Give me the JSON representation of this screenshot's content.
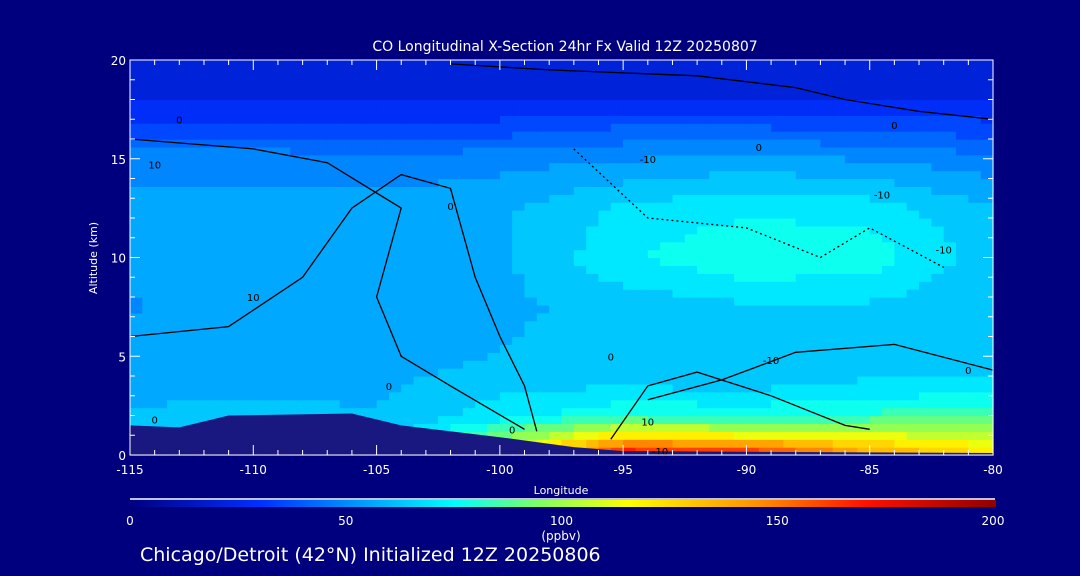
{
  "chart_data": {
    "type": "heatmap",
    "title": "CO Longitudinal X-Section 24hr  Fx Valid 12Z 20250807",
    "xlabel": "Longitude",
    "ylabel": "Altitude (km)",
    "xlim": [
      -115,
      -80
    ],
    "ylim": [
      0,
      20
    ],
    "x_ticks": [
      "-115",
      "-110",
      "-105",
      "-100",
      "-95",
      "-90",
      "-85",
      "-80"
    ],
    "x_tick_values": [
      -115,
      -110,
      -105,
      -100,
      -95,
      -90,
      -85,
      -80
    ],
    "y_ticks": [
      "0",
      "5",
      "10",
      "15",
      "20"
    ],
    "y_tick_values": [
      0,
      5,
      10,
      15,
      20
    ],
    "grid_lon": [
      -115,
      -110,
      -105,
      -100,
      -95,
      -90,
      -85,
      -80
    ],
    "grid_alt": [
      0.3,
      1,
      2,
      3.5,
      5,
      7.5,
      10,
      12.5,
      15,
      16.5,
      18,
      20
    ],
    "values_ppbv": [
      [
        60,
        60,
        60,
        100,
        165,
        160,
        135,
        120
      ],
      [
        60,
        60,
        60,
        90,
        120,
        115,
        110,
        105
      ],
      [
        60,
        62,
        60,
        70,
        80,
        78,
        82,
        85
      ],
      [
        58,
        58,
        58,
        65,
        66,
        65,
        68,
        70
      ],
      [
        55,
        55,
        55,
        60,
        62,
        60,
        62,
        62
      ],
      [
        52,
        55,
        55,
        58,
        62,
        65,
        65,
        60
      ],
      [
        55,
        55,
        55,
        58,
        72,
        80,
        78,
        62
      ],
      [
        55,
        55,
        55,
        58,
        68,
        72,
        70,
        60
      ],
      [
        50,
        50,
        48,
        50,
        52,
        55,
        52,
        48
      ],
      [
        35,
        35,
        35,
        35,
        40,
        40,
        38,
        35
      ],
      [
        24,
        24,
        24,
        24,
        24,
        24,
        24,
        24
      ],
      [
        22,
        22,
        22,
        22,
        22,
        22,
        22,
        22
      ]
    ],
    "terrain_km": [
      [
        -115,
        1.5
      ],
      [
        -113,
        1.4
      ],
      [
        -111,
        2.0
      ],
      [
        -106,
        2.1
      ],
      [
        -104,
        1.5
      ],
      [
        -100,
        0.9
      ],
      [
        -97,
        0.4
      ],
      [
        -95,
        0.2
      ],
      [
        -80,
        0.1
      ]
    ],
    "contours": [
      {
        "label": "0",
        "points": [
          [
            -102,
            19.8
          ],
          [
            -98,
            19.5
          ],
          [
            -92,
            19.2
          ],
          [
            -88,
            18.6
          ],
          [
            -86,
            18.0
          ],
          [
            -83,
            17.4
          ],
          [
            -80,
            17.0
          ]
        ]
      },
      {
        "label": "-10",
        "points": [
          [
            -97,
            15.5
          ],
          [
            -94,
            12.0
          ],
          [
            -90,
            11.5
          ],
          [
            -87,
            10.0
          ],
          [
            -85,
            11.5
          ],
          [
            -82,
            9.5
          ]
        ],
        "dashed": true
      },
      {
        "label": "0",
        "points": [
          [
            -115,
            16.0
          ],
          [
            -110,
            15.5
          ],
          [
            -107,
            14.8
          ],
          [
            -104,
            12.5
          ],
          [
            -105,
            8.0
          ],
          [
            -104,
            5.0
          ],
          [
            -102,
            3.5
          ],
          [
            -99,
            1.3
          ]
        ]
      },
      {
        "label": "10",
        "points": [
          [
            -115,
            6.0
          ],
          [
            -111,
            6.5
          ],
          [
            -108,
            9.0
          ],
          [
            -106,
            12.5
          ],
          [
            -104,
            14.2
          ],
          [
            -102,
            13.5
          ],
          [
            -101,
            9.0
          ],
          [
            -100,
            6.0
          ],
          [
            -99,
            3.5
          ],
          [
            -98.5,
            1.2
          ]
        ]
      },
      {
        "label": "10",
        "points": [
          [
            -95.5,
            0.8
          ],
          [
            -94,
            3.5
          ],
          [
            -92,
            4.2
          ],
          [
            -89,
            3.0
          ],
          [
            -86,
            1.5
          ],
          [
            -85,
            1.3
          ]
        ]
      },
      {
        "label": "0",
        "points": [
          [
            -94,
            2.8
          ],
          [
            -91,
            3.8
          ],
          [
            -88,
            5.2
          ],
          [
            -84,
            5.6
          ],
          [
            -80,
            4.3
          ]
        ]
      }
    ],
    "contour_labels": [
      {
        "text": "0",
        "lon": -113,
        "alt": 17.0
      },
      {
        "text": "-10",
        "lon": -94,
        "alt": 15.0
      },
      {
        "text": "0",
        "lon": -89.5,
        "alt": 15.6
      },
      {
        "text": "0",
        "lon": -84,
        "alt": 16.7
      },
      {
        "text": "-10",
        "lon": -84.5,
        "alt": 13.2
      },
      {
        "text": "-10",
        "lon": -82,
        "alt": 10.4
      },
      {
        "text": "10",
        "lon": -114,
        "alt": 14.7
      },
      {
        "text": "0",
        "lon": -102,
        "alt": 12.6
      },
      {
        "text": "10",
        "lon": -110,
        "alt": 8.0
      },
      {
        "text": "0",
        "lon": -104.5,
        "alt": 3.5
      },
      {
        "text": "0",
        "lon": -95.5,
        "alt": 5.0
      },
      {
        "text": "-10",
        "lon": -89,
        "alt": 4.8
      },
      {
        "text": "0",
        "lon": -81,
        "alt": 4.3
      },
      {
        "text": "10",
        "lon": -94,
        "alt": 1.7
      },
      {
        "text": "0",
        "lon": -114,
        "alt": 1.8
      },
      {
        "text": "0",
        "lon": -99.5,
        "alt": 1.3
      },
      {
        "text": "-10",
        "lon": -93.5,
        "alt": 0.2
      }
    ],
    "colorbar": {
      "min": 0,
      "max": 200,
      "ticks": [
        "0",
        "50",
        "100",
        "150",
        "200"
      ],
      "tick_values": [
        0,
        50,
        100,
        150,
        200
      ],
      "units": "(ppbv)",
      "stops": [
        {
          "v": 0,
          "c": "#000080"
        },
        {
          "v": 30,
          "c": "#0030ff"
        },
        {
          "v": 75,
          "c": "#00ffff"
        },
        {
          "v": 95,
          "c": "#80ff60"
        },
        {
          "v": 115,
          "c": "#ffff00"
        },
        {
          "v": 145,
          "c": "#ff9000"
        },
        {
          "v": 170,
          "c": "#ff1000"
        },
        {
          "v": 200,
          "c": "#900000"
        }
      ]
    },
    "footer": "Chicago/Detroit (42°N) Initialized 12Z 20250806",
    "terrain_color": "#181880",
    "background_color": "#00007f"
  }
}
